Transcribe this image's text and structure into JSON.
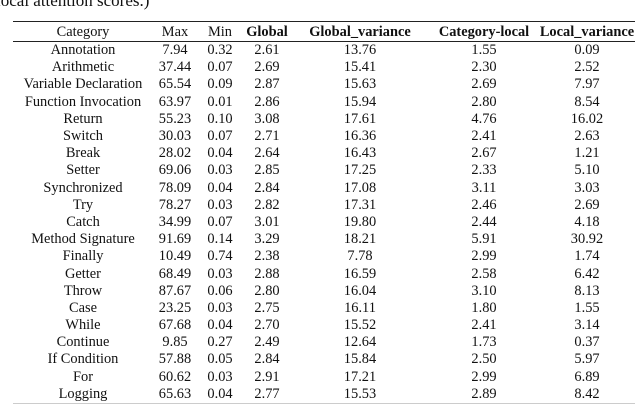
{
  "caption_fragment": "local attention scores.)",
  "table": {
    "headers": [
      "Category",
      "Max",
      "Min",
      "Global",
      "Global_variance",
      "Category-local",
      "Local_variance"
    ],
    "rows": [
      [
        "Annotation",
        "7.94",
        "0.32",
        "2.61",
        "13.76",
        "1.55",
        "0.09"
      ],
      [
        "Arithmetic",
        "37.44",
        "0.07",
        "2.69",
        "15.41",
        "2.30",
        "2.52"
      ],
      [
        "Variable Declaration",
        "65.54",
        "0.09",
        "2.87",
        "15.63",
        "2.69",
        "7.97"
      ],
      [
        "Function Invocation",
        "63.97",
        "0.01",
        "2.86",
        "15.94",
        "2.80",
        "8.54"
      ],
      [
        "Return",
        "55.23",
        "0.10",
        "3.08",
        "17.61",
        "4.76",
        "16.02"
      ],
      [
        "Switch",
        "30.03",
        "0.07",
        "2.71",
        "16.36",
        "2.41",
        "2.63"
      ],
      [
        "Break",
        "28.02",
        "0.04",
        "2.64",
        "16.43",
        "2.67",
        "1.21"
      ],
      [
        "Setter",
        "69.06",
        "0.03",
        "2.85",
        "17.25",
        "2.33",
        "5.10"
      ],
      [
        "Synchronized",
        "78.09",
        "0.04",
        "2.84",
        "17.08",
        "3.11",
        "3.03"
      ],
      [
        "Try",
        "78.27",
        "0.03",
        "2.82",
        "17.31",
        "2.46",
        "2.69"
      ],
      [
        "Catch",
        "34.99",
        "0.07",
        "3.01",
        "19.80",
        "2.44",
        "4.18"
      ],
      [
        "Method Signature",
        "91.69",
        "0.14",
        "3.29",
        "18.21",
        "5.91",
        "30.92"
      ],
      [
        "Finally",
        "10.49",
        "0.74",
        "2.38",
        "7.78",
        "2.99",
        "1.74"
      ],
      [
        "Getter",
        "68.49",
        "0.03",
        "2.88",
        "16.59",
        "2.58",
        "6.42"
      ],
      [
        "Throw",
        "87.67",
        "0.06",
        "2.80",
        "16.04",
        "3.10",
        "8.13"
      ],
      [
        "Case",
        "23.25",
        "0.03",
        "2.75",
        "16.11",
        "1.80",
        "1.55"
      ],
      [
        "While",
        "67.68",
        "0.04",
        "2.70",
        "15.52",
        "2.41",
        "3.14"
      ],
      [
        "Continue",
        "9.85",
        "0.27",
        "2.49",
        "12.64",
        "1.73",
        "0.37"
      ],
      [
        "If Condition",
        "57.88",
        "0.05",
        "2.84",
        "15.84",
        "2.50",
        "5.97"
      ],
      [
        "For",
        "60.62",
        "0.03",
        "2.91",
        "17.21",
        "2.99",
        "6.89"
      ],
      [
        "Logging",
        "65.63",
        "0.04",
        "2.77",
        "15.53",
        "2.89",
        "8.42"
      ]
    ]
  }
}
